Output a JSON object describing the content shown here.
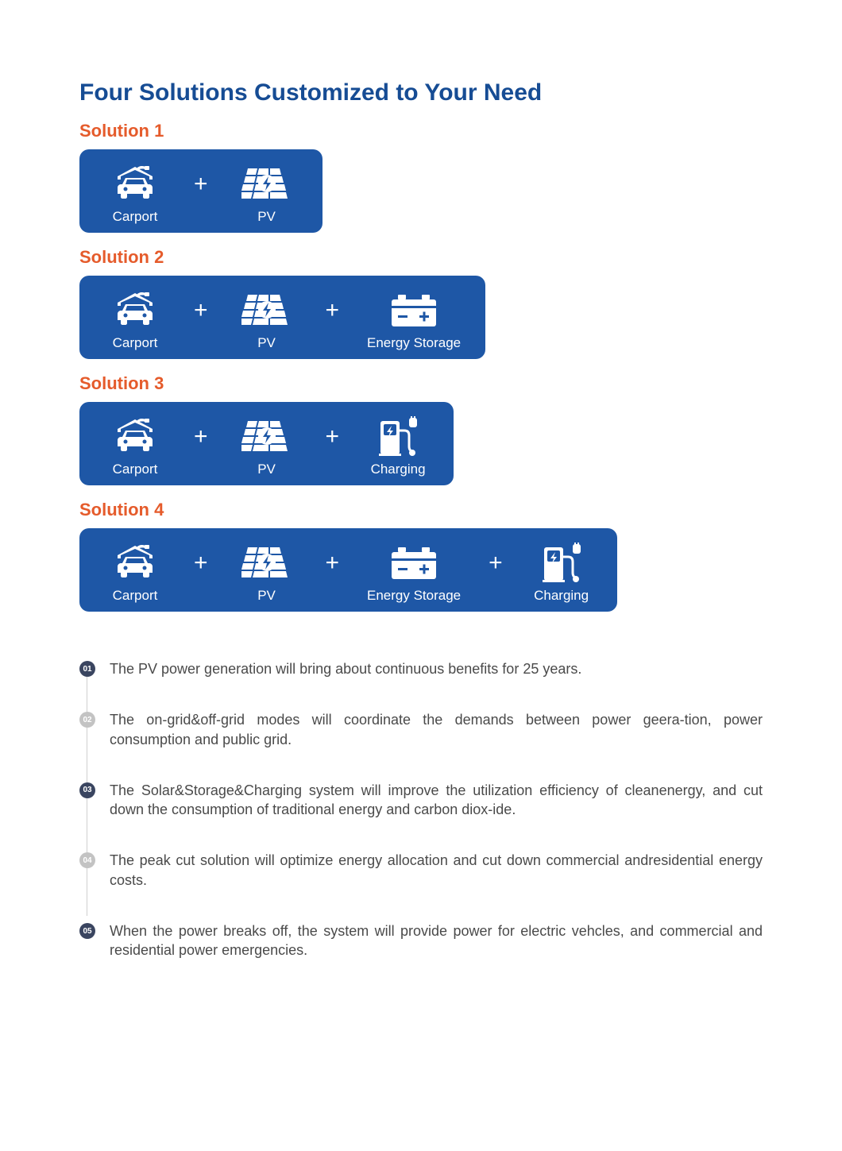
{
  "page": {
    "title": "Four Solutions Customized to Your Need",
    "title_color": "#164c94",
    "title_fontsize": 30,
    "solution_title_color": "#e55b2b",
    "box_bg_color": "#1e57a6",
    "box_text_color": "#ffffff",
    "background_color": "#ffffff"
  },
  "components": {
    "carport": {
      "label": "Carport",
      "icon": "carport"
    },
    "pv": {
      "label": "PV",
      "icon": "pv"
    },
    "storage": {
      "label": "Energy Storage",
      "icon": "storage"
    },
    "charging": {
      "label": "Charging",
      "icon": "charging"
    }
  },
  "solutions": [
    {
      "title": "Solution 1",
      "components": [
        "carport",
        "pv"
      ]
    },
    {
      "title": "Solution 2",
      "components": [
        "carport",
        "pv",
        "storage"
      ]
    },
    {
      "title": "Solution 3",
      "components": [
        "carport",
        "pv",
        "charging"
      ]
    },
    {
      "title": "Solution 4",
      "components": [
        "carport",
        "pv",
        "storage",
        "charging"
      ]
    }
  ],
  "bullets": [
    {
      "num": "01",
      "style": "dark",
      "text": "The PV power generation will bring about continuous benefits for 25 years."
    },
    {
      "num": "02",
      "style": "light",
      "text": "The on-grid&off-grid modes will coordinate the demands between power geera-tion, power consumption and public grid."
    },
    {
      "num": "03",
      "style": "dark",
      "text": "The Solar&Storage&Charging system will improve the utilization efficiency of cleanenergy, and cut down the consumption of traditional energy and carbon diox-ide."
    },
    {
      "num": "04",
      "style": "light",
      "text": "The peak cut solution will optimize energy allocation and cut down commercial andresidential energy costs."
    },
    {
      "num": "05",
      "style": "dark",
      "text": "When the power breaks off, the system will provide power for electric vehcles, and commercial and residential power emergencies."
    }
  ],
  "bullet_styles": {
    "dark": {
      "bg": "#3a4560",
      "fg": "#ffffff"
    },
    "light": {
      "bg": "#c3c3c3",
      "fg": "#ffffff"
    }
  }
}
